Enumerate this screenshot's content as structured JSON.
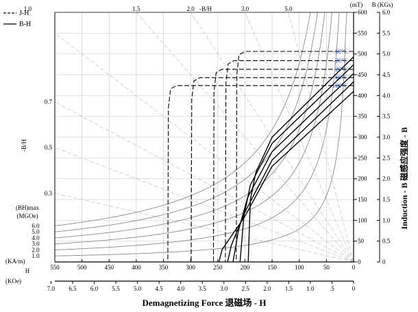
{
  "chart_data": {
    "type": "line",
    "title": "",
    "legend": [
      {
        "label": "J-H",
        "style": "dashed"
      },
      {
        "label": "B-H",
        "style": "solid"
      }
    ],
    "xlabel": "Demagnetizing Force 退磁场 - H",
    "x_primary": {
      "unit_label": "(KA/m)",
      "ticks": [
        550,
        500,
        450,
        400,
        350,
        300,
        250,
        200,
        150,
        100,
        50,
        0
      ],
      "range": [
        550,
        0
      ]
    },
    "x_secondary": {
      "unit_label": "(KOe)",
      "mid_label": "H",
      "ticks": [
        "7.0",
        "6.5",
        "6.0",
        "5.5",
        "5.0",
        "4.5",
        "4.0",
        "3.5",
        "3.0",
        "2.5",
        "2.0",
        "1.5",
        "1.0",
        ".5",
        "0"
      ]
    },
    "ylabel": "Induction - B 磁感应强度 - B",
    "y_mT": {
      "unit_label": "(mT)",
      "ticks": [
        0,
        50,
        100,
        150,
        200,
        250,
        300,
        350,
        400,
        450,
        500,
        550,
        600
      ],
      "range": [
        0,
        600
      ]
    },
    "y_kGs": {
      "unit_label": "B (KGs)",
      "ticks": [
        "0",
        "0.5",
        "1.0",
        "1.5",
        "2.0",
        "2.5",
        "3.0",
        "3.5",
        "4.0",
        "4.5",
        "5.0",
        "5.5",
        "6.0"
      ]
    },
    "permeance": {
      "top_label": "-B/H",
      "top_ticks": [
        "1.0",
        "1.5",
        "2.0",
        "3.0",
        "5.0"
      ],
      "left_label": "-B/H",
      "left_ticks": [
        "0.7",
        "0.5",
        "0.3"
      ]
    },
    "bhmax": {
      "label_line1": "(BH)max",
      "label_line2": "(MGOe)",
      "values": [
        "6.0",
        "5.0",
        "4.0",
        "3.0",
        "2.0",
        "1.0"
      ]
    },
    "temperatures": [
      "-60°C",
      "-20°C",
      "20°C",
      "60°C",
      "100°C"
    ],
    "series": [
      {
        "name": "-60°C",
        "type": "J-H",
        "points": [
          [
            0,
            506
          ],
          [
            200,
            506
          ],
          [
            211,
            498
          ],
          [
            215,
            450
          ],
          [
            216,
            0
          ]
        ]
      },
      {
        "name": "-20°C",
        "type": "J-H",
        "points": [
          [
            0,
            484
          ],
          [
            220,
            484
          ],
          [
            231,
            476
          ],
          [
            235,
            430
          ],
          [
            236,
            0
          ]
        ]
      },
      {
        "name": "20°C",
        "type": "J-H",
        "points": [
          [
            0,
            463
          ],
          [
            243,
            463
          ],
          [
            253,
            455
          ],
          [
            257,
            410
          ],
          [
            258,
            0
          ]
        ]
      },
      {
        "name": "60°C",
        "type": "J-H",
        "points": [
          [
            0,
            443
          ],
          [
            283,
            443
          ],
          [
            294,
            435
          ],
          [
            298,
            390
          ],
          [
            299,
            0
          ]
        ]
      },
      {
        "name": "100°C",
        "type": "J-H",
        "points": [
          [
            0,
            424
          ],
          [
            326,
            424
          ],
          [
            337,
            416
          ],
          [
            341,
            370
          ],
          [
            342,
            0
          ]
        ]
      },
      {
        "name": "-60°C",
        "type": "B-H",
        "points": [
          [
            0,
            493
          ],
          [
            150,
            300
          ],
          [
            180,
            215
          ],
          [
            190,
            150
          ],
          [
            194,
            0
          ]
        ]
      },
      {
        "name": "-20°C",
        "type": "B-H",
        "points": [
          [
            0,
            474
          ],
          [
            150,
            285
          ],
          [
            190,
            185
          ],
          [
            202,
            110
          ],
          [
            209,
            0
          ]
        ]
      },
      {
        "name": "20°C",
        "type": "B-H",
        "points": [
          [
            0,
            453
          ],
          [
            150,
            265
          ],
          [
            195,
            155
          ],
          [
            212,
            75
          ],
          [
            222,
            0
          ]
        ]
      },
      {
        "name": "60°C",
        "type": "B-H",
        "points": [
          [
            0,
            433
          ],
          [
            150,
            245
          ],
          [
            200,
            120
          ],
          [
            225,
            40
          ],
          [
            232,
            0
          ]
        ]
      },
      {
        "name": "100°C",
        "type": "B-H",
        "points": [
          [
            0,
            410
          ],
          [
            150,
            230
          ],
          [
            200,
            110
          ],
          [
            242,
            30
          ],
          [
            248,
            0
          ]
        ]
      }
    ]
  },
  "colors": {
    "temp_label": "#3355bb",
    "grid": "#d0d0d0",
    "guide": "#c8c8c8",
    "iso": "#8a8a8a"
  }
}
